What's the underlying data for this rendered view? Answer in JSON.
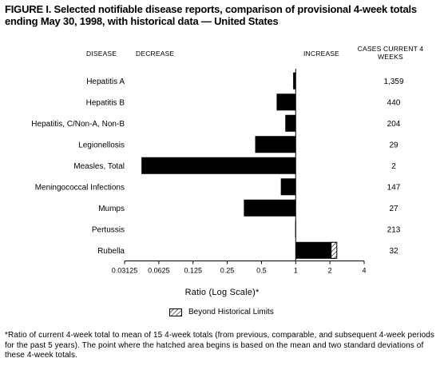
{
  "title": "FIGURE I. Selected notifiable disease reports, comparison of provisional 4-week totals ending May 30, 1998, with historical data — United States",
  "headers": {
    "disease": "DISEASE",
    "decrease": "DECREASE",
    "increase": "INCREASE",
    "cases": "CASES CURRENT 4 WEEKS"
  },
  "chart_data": {
    "type": "bar",
    "orientation": "horizontal",
    "scale": "log2",
    "xlim": [
      0.03125,
      4
    ],
    "xticks": [
      "0.03125",
      "0.0625",
      "0.125",
      "0.25",
      "0.5",
      "1",
      "2",
      "4"
    ],
    "xtick_values": [
      0.03125,
      0.0625,
      0.125,
      0.25,
      0.5,
      1,
      2,
      4
    ],
    "xlabel": "Ratio (Log Scale)*",
    "categories": [
      "Hepatitis A",
      "Hepatitis B",
      "Hepatitis, C/Non-A, Non-B",
      "Legionellosis",
      "Measles, Total",
      "Meningococcal Infections",
      "Mumps",
      "Pertussis",
      "Rubella"
    ],
    "values": [
      0.95,
      0.68,
      0.81,
      0.44,
      0.044,
      0.74,
      0.35,
      0.99,
      2.3
    ],
    "beyond_limits_start": [
      null,
      null,
      null,
      null,
      null,
      null,
      null,
      null,
      2.05
    ],
    "cases": [
      "1,359",
      "440",
      "204",
      "29",
      "2",
      "147",
      "27",
      "213",
      "32"
    ],
    "bar_color": "#000000"
  },
  "legend": {
    "label": "Beyond Historical Limits"
  },
  "footnote": "*Ratio of current 4-week total to mean of 15 4-week totals (from previous, comparable, and subsequent 4-week periods for the past 5 years). The point where the hatched area begins is based on the mean and two standard deviations of these 4-week totals."
}
